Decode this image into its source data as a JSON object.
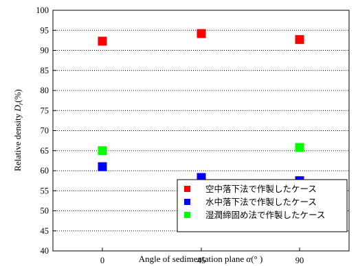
{
  "chart_data": {
    "type": "scatter",
    "xlabel": "Angle of sedimentation plane ",
    "xlabel_symbol": "α",
    "xlabel_unit": "(° )",
    "ylabel": "Relative density ",
    "ylabel_symbol": "D",
    "ylabel_subscript": "r",
    "ylabel_unit": "(%)",
    "categories": [
      "0",
      "45",
      "90"
    ],
    "ylim": [
      40,
      100
    ],
    "yticks": [
      40,
      45,
      50,
      55,
      60,
      65,
      70,
      75,
      80,
      85,
      90,
      95,
      100
    ],
    "grid": "horizontal-dotted",
    "legend_position": "bottom-right",
    "series": [
      {
        "name": "空中落下法で作製したケース",
        "color": "#ff0000",
        "values": [
          92.3,
          94.2,
          92.7
        ]
      },
      {
        "name": "水中落下法で作製したケース",
        "color": "#0000ff",
        "values": [
          61.0,
          58.3,
          57.5
        ]
      },
      {
        "name": "湿潤締固め法で作製したケース",
        "color": "#00ff00",
        "values": [
          65.0,
          null,
          65.8
        ]
      }
    ]
  }
}
